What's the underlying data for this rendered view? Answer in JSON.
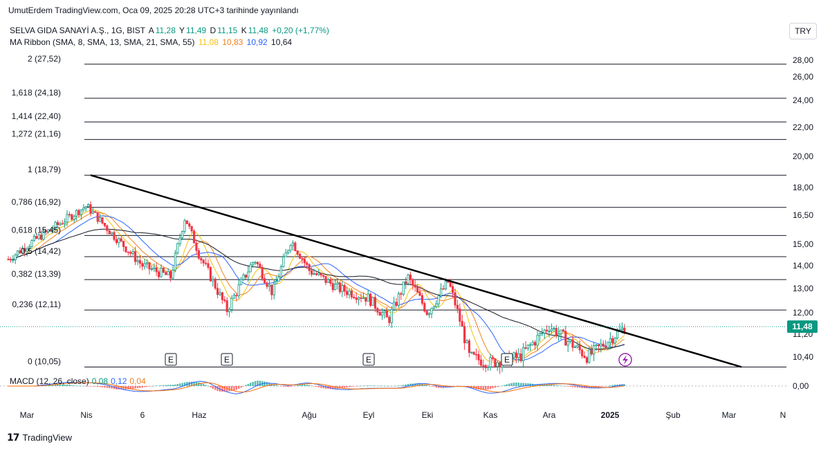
{
  "header": {
    "published": "UmutErdem TradingView.com, Oca 09, 2025 20:28 UTC+3 tarihinde yayınlandı"
  },
  "legend": {
    "symbol": "SELVA GIDA SANAYİ A.Ş., 1G, BIST",
    "o_label": "A",
    "o_value": "11,28",
    "h_label": "Y",
    "h_value": "11,49",
    "l_label": "D",
    "l_value": "11,15",
    "c_label": "K",
    "c_value": "11,48",
    "change": "+0,20 (+1,77%)",
    "ma_title": "MA Ribbon (SMA, 8, SMA, 13, SMA, 21, SMA, 55)",
    "ma_values": [
      "11,08",
      "10,83",
      "10,92",
      "10,64"
    ]
  },
  "currency": "TRY",
  "macd_legend": {
    "title": "MACD (12, 26, close)",
    "values": [
      "0,08",
      "0,12",
      "0,04"
    ]
  },
  "branding": {
    "name": "TradingView"
  },
  "colors": {
    "up": "#089981",
    "down": "#f23645",
    "ma8": "#f2c20c",
    "ma13": "#f0801f",
    "ma21": "#2962ff",
    "ma55": "#131722",
    "price_label": "#089981",
    "alert": "#9c27b0"
  },
  "chart_data": {
    "type": "candlestick",
    "price_scale": {
      "ticks": [
        "28,00",
        "26,00",
        "24,00",
        "22,00",
        "20,00",
        "18,00",
        "16,50",
        "15,00",
        "14,00",
        "13,00",
        "12,00",
        "11,20",
        "10,40"
      ],
      "tick_values": [
        28,
        26,
        24,
        22,
        20,
        18,
        16.5,
        15,
        14,
        13,
        12,
        11.2,
        10.4
      ]
    },
    "macd_scale": {
      "ticks": [
        "0,00"
      ],
      "tick_values": [
        0
      ]
    },
    "time_axis": {
      "labels": [
        "Mar",
        "Nis",
        "6",
        "Haz",
        "Ağu",
        "Eyl",
        "Eki",
        "Kas",
        "Ara",
        "2025",
        "Şub",
        "Mar",
        "N"
      ],
      "bold": [
        false,
        false,
        false,
        false,
        false,
        false,
        false,
        false,
        false,
        true,
        false,
        false,
        false
      ]
    },
    "last_price": {
      "label": "11,48",
      "value": 11.48
    },
    "fibonacci": [
      {
        "label": "2 (27,52)",
        "value": 27.52
      },
      {
        "label": "1,618 (24,18)",
        "value": 24.18
      },
      {
        "label": "1,414 (22,40)",
        "value": 22.4
      },
      {
        "label": "1,272 (21,16)",
        "value": 21.16
      },
      {
        "label": "1 (18,79)",
        "value": 18.79
      },
      {
        "label": "0,786 (16,92)",
        "value": 16.92
      },
      {
        "label": "0,618 (15,45)",
        "value": 15.45
      },
      {
        "label": "0,5 (14,42)",
        "value": 14.42
      },
      {
        "label": "0,382 (13,39)",
        "value": 13.39
      },
      {
        "label": "0,236 (12,11)",
        "value": 12.11
      },
      {
        "label": "0 (10,05)",
        "value": 10.05
      }
    ],
    "trendline": {
      "start": {
        "date": "Nis",
        "price": 18.79
      },
      "end": {
        "date": "Mar 2025",
        "price": 10.05
      }
    },
    "earnings_markers": [
      {
        "label": "E",
        "date": "May"
      },
      {
        "label": "E",
        "date": "Haz"
      },
      {
        "label": "E",
        "date": "Eyl"
      },
      {
        "label": "E",
        "date": "Kas"
      }
    ],
    "close_path": [
      {
        "date": "Mar",
        "close": 14.3
      },
      {
        "date": "Nis",
        "close": 17.0
      },
      {
        "date": "Nis",
        "close": 15.4
      },
      {
        "date": "6",
        "close": 14.0
      },
      {
        "date": "May",
        "close": 13.5
      },
      {
        "date": "May",
        "close": 16.4
      },
      {
        "date": "Haz",
        "close": 14.5
      },
      {
        "date": "Haz",
        "close": 12.1
      },
      {
        "date": "Tem",
        "close": 14.3
      },
      {
        "date": "Tem",
        "close": 12.8
      },
      {
        "date": "Tem",
        "close": 15.2
      },
      {
        "date": "Ağu",
        "close": 13.8
      },
      {
        "date": "Ağu",
        "close": 13.0
      },
      {
        "date": "Eyl",
        "close": 12.6
      },
      {
        "date": "Eyl",
        "close": 11.7
      },
      {
        "date": "Eyl",
        "close": 13.5
      },
      {
        "date": "Eki",
        "close": 12.0
      },
      {
        "date": "Eki",
        "close": 13.3
      },
      {
        "date": "Eki",
        "close": 10.4
      },
      {
        "date": "Kas",
        "close": 10.2
      },
      {
        "date": "Kas",
        "close": 10.4
      },
      {
        "date": "Ara",
        "close": 11.5
      },
      {
        "date": "Ara",
        "close": 10.4
      },
      {
        "date": "2025",
        "close": 11.48
      }
    ]
  }
}
